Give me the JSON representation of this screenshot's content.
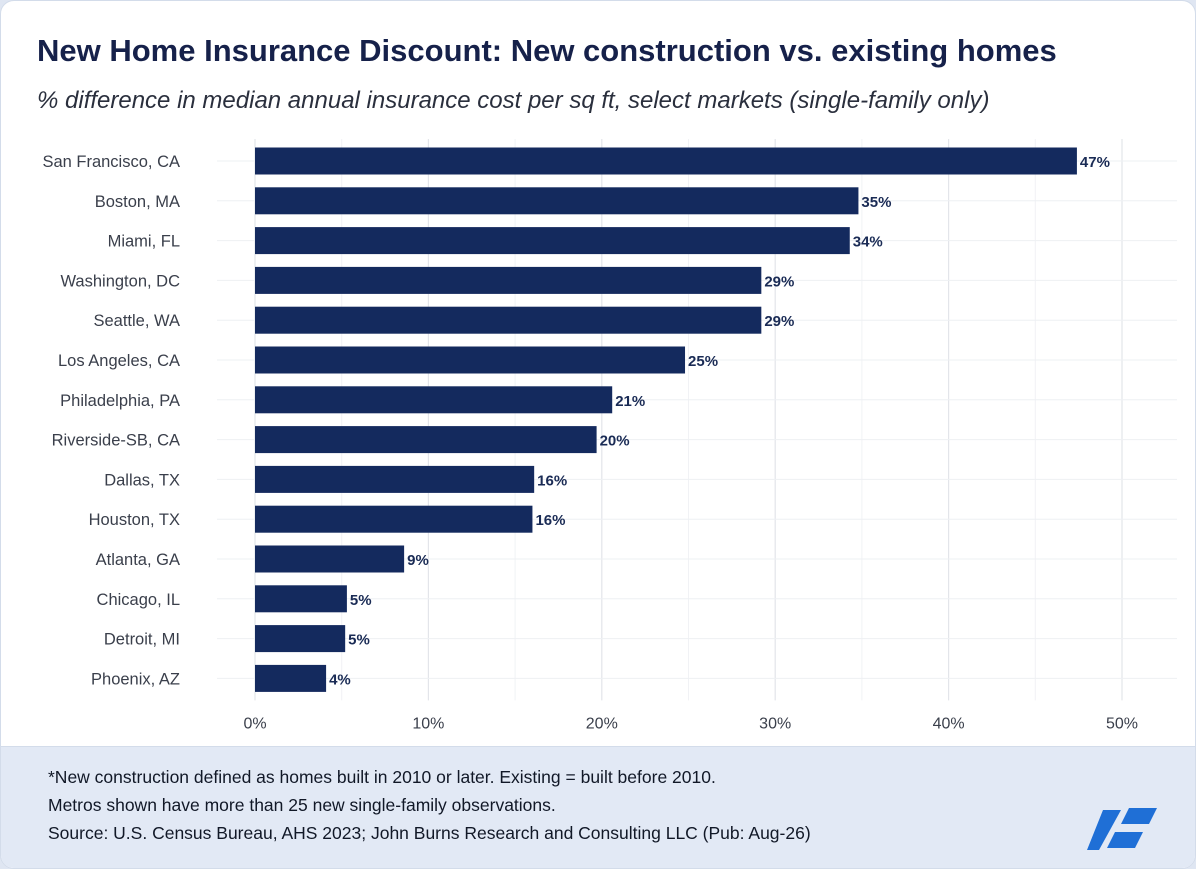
{
  "header": {
    "title": "New Home Insurance Discount: New construction vs. existing homes",
    "subtitle": "% difference in median annual insurance cost per sq ft, select markets (single-family only)"
  },
  "chart_data": {
    "type": "bar",
    "orientation": "horizontal",
    "categories": [
      "San Francisco, CA",
      "Boston, MA",
      "Miami, FL",
      "Washington, DC",
      "Seattle, WA",
      "Los Angeles, CA",
      "Philadelphia, PA",
      "Riverside-SB, CA",
      "Dallas, TX",
      "Houston, TX",
      "Atlanta, GA",
      "Chicago, IL",
      "Detroit, MI",
      "Phoenix, AZ"
    ],
    "values": [
      47.4,
      34.8,
      34.3,
      29.2,
      29.2,
      24.8,
      20.6,
      19.7,
      16.1,
      16.0,
      8.6,
      5.3,
      5.2,
      4.1
    ],
    "data_labels": [
      "47%",
      "35%",
      "34%",
      "29%",
      "29%",
      "25%",
      "21%",
      "20%",
      "16%",
      "16%",
      "9%",
      "5%",
      "5%",
      "4%"
    ],
    "xlim": [
      0,
      50
    ],
    "x_ticks": [
      0,
      10,
      20,
      30,
      40,
      50
    ],
    "x_tick_labels": [
      "0%",
      "10%",
      "20%",
      "30%",
      "40%",
      "50%"
    ],
    "grid": true,
    "bar_color": "#142a5e",
    "title": "New Home Insurance Discount: New construction vs. existing homes",
    "subtitle": "% difference in median annual insurance cost per sq ft, select markets (single-family only)",
    "xlabel": "",
    "ylabel": ""
  },
  "footer": {
    "notes": [
      "*New construction defined as homes built in 2010 or later. Existing = built before 2010.",
      "Metros shown have more than 25 new single-family observations.",
      "Source: U.S. Census Bureau, AHS 2023; John Burns Research and Consulting LLC (Pub: Aug-26)"
    ]
  },
  "logo": {
    "icon": "brand-logo-icon",
    "color": "#1f6fd6"
  }
}
